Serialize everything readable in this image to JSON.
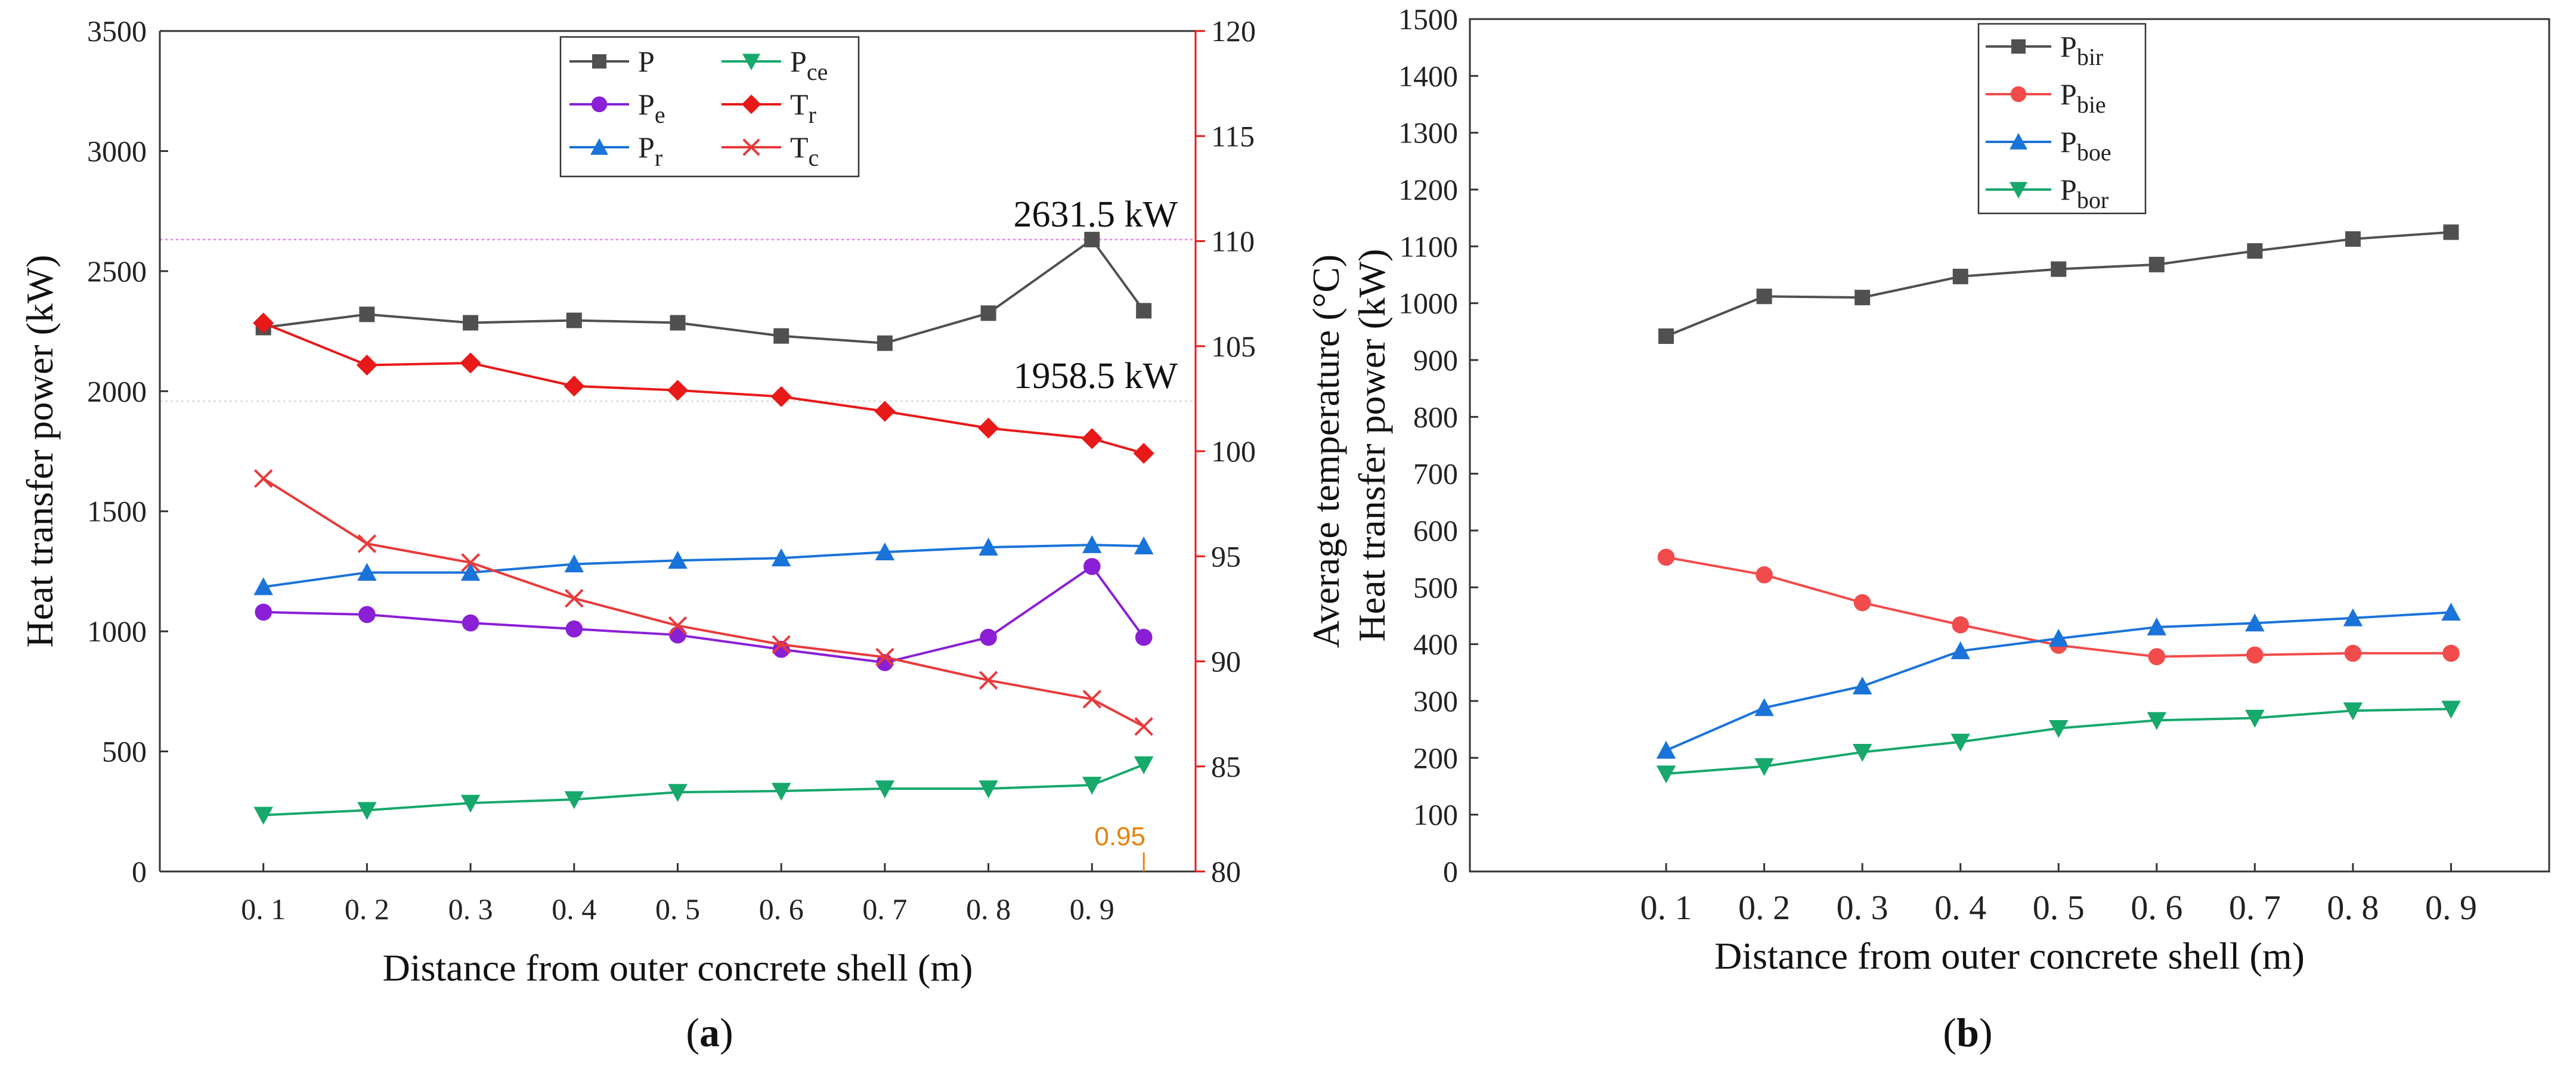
{
  "panel_labels": {
    "a_open": "(",
    "a": "a",
    "a_close": ")",
    "b_open": "(",
    "b": "b",
    "b_close": ")"
  },
  "chart_data": [
    {
      "panel": "a",
      "type": "line",
      "xlabel": "Distance from outer concrete shell (m)",
      "ylabel": "Heat transfer power (kW)",
      "y2label": "Average temperature (°C)",
      "categories": [
        "0.1",
        "0.2",
        "0.3",
        "0.4",
        "0.5",
        "0.6",
        "0.7",
        "0.8",
        "0.9",
        "0.95"
      ],
      "x": [
        0.1,
        0.2,
        0.3,
        0.4,
        0.5,
        0.6,
        0.7,
        0.8,
        0.9,
        0.95
      ],
      "xticks": [
        "0. 1",
        "0. 2",
        "0. 3",
        "0. 4",
        "0. 5",
        "0. 6",
        "0. 7",
        "0. 8",
        "0. 9"
      ],
      "xtick_values": [
        0.1,
        0.2,
        0.3,
        0.4,
        0.5,
        0.6,
        0.7,
        0.8,
        0.9
      ],
      "xlim": [
        0.0,
        1.0
      ],
      "ylim": [
        0,
        3500
      ],
      "yticks": [
        0,
        500,
        1000,
        1500,
        2000,
        2500,
        3000,
        3500
      ],
      "y2lim": [
        80,
        120
      ],
      "y2ticks": [
        80,
        85,
        90,
        95,
        100,
        105,
        110,
        115,
        120
      ],
      "series": [
        {
          "name": "P",
          "sub": "",
          "axis": "left",
          "color": "#505050",
          "marker": "square",
          "values": [
            2265,
            2320,
            2285,
            2295,
            2285,
            2230,
            2200,
            2325,
            2631.5,
            2335
          ]
        },
        {
          "name": "P",
          "sub": "e",
          "axis": "left",
          "color": "#8A1FD6",
          "marker": "circle",
          "values": [
            1080,
            1070,
            1035,
            1010,
            985,
            925,
            870,
            975,
            1270,
            975
          ]
        },
        {
          "name": "P",
          "sub": "r",
          "axis": "left",
          "color": "#1A73D9",
          "marker": "triangle-up",
          "values": [
            1185,
            1245,
            1245,
            1280,
            1295,
            1305,
            1330,
            1350,
            1360,
            1355
          ]
        },
        {
          "name": "P",
          "sub": "ce",
          "axis": "left",
          "color": "#17A86B",
          "marker": "triangle-down",
          "values": [
            235,
            255,
            285,
            300,
            330,
            335,
            345,
            345,
            360,
            445
          ]
        },
        {
          "name": "T",
          "sub": "r",
          "axis": "right",
          "color": "#E81919",
          "marker": "diamond",
          "values": [
            106.1,
            104.1,
            104.2,
            103.1,
            102.9,
            102.6,
            101.9,
            101.1,
            100.6,
            99.9
          ]
        },
        {
          "name": "T",
          "sub": "c",
          "axis": "right",
          "color": "#E83A3A",
          "marker": "x",
          "values": [
            98.7,
            95.6,
            94.7,
            93.0,
            91.7,
            90.8,
            90.2,
            89.1,
            88.2,
            86.9
          ]
        }
      ],
      "reference_lines": [
        {
          "value": 2631.5,
          "label": "2631.5 kW"
        },
        {
          "value": 1958.5,
          "label": "1958.5 kW"
        }
      ],
      "x_marker": {
        "value": 0.95,
        "label": "0.95",
        "color": "#E8820C"
      },
      "legend_position": "top-center"
    },
    {
      "panel": "b",
      "type": "line",
      "xlabel": "Distance from outer concrete shell (m)",
      "ylabel": "Heat transfer power (kW)",
      "categories": [
        "0.1",
        "0.2",
        "0.3",
        "0.4",
        "0.5",
        "0.6",
        "0.7",
        "0.8",
        "0.9"
      ],
      "x": [
        0.1,
        0.2,
        0.3,
        0.4,
        0.5,
        0.6,
        0.7,
        0.8,
        0.9
      ],
      "xticks": [
        "0. 1",
        "0. 2",
        "0. 3",
        "0. 4",
        "0. 5",
        "0. 6",
        "0. 7",
        "0. 8",
        "0. 9"
      ],
      "xtick_values": [
        0.1,
        0.2,
        0.3,
        0.4,
        0.5,
        0.6,
        0.7,
        0.8,
        0.9
      ],
      "xlim": [
        -0.1,
        1.0
      ],
      "ylim": [
        0,
        1500
      ],
      "yticks": [
        0,
        100,
        200,
        300,
        400,
        500,
        600,
        700,
        800,
        900,
        1000,
        1100,
        1200,
        1300,
        1400,
        1500
      ],
      "series": [
        {
          "name": "P",
          "sub": "bir",
          "color": "#505050",
          "marker": "square",
          "values": [
            942,
            1012,
            1010,
            1047,
            1060,
            1068,
            1092,
            1113,
            1125
          ]
        },
        {
          "name": "P",
          "sub": "bie",
          "color": "#F24B4B",
          "marker": "circle",
          "values": [
            553,
            522,
            473,
            434,
            398,
            378,
            381,
            384,
            384
          ]
        },
        {
          "name": "P",
          "sub": "boe",
          "color": "#1A73D9",
          "marker": "triangle-up",
          "values": [
            213,
            288,
            326,
            388,
            410,
            430,
            437,
            446,
            456
          ]
        },
        {
          "name": "P",
          "sub": "bor",
          "color": "#17A86B",
          "marker": "triangle-down",
          "values": [
            172,
            185,
            210,
            228,
            252,
            266,
            270,
            283,
            286
          ]
        }
      ],
      "legend_position": "top-left"
    }
  ]
}
